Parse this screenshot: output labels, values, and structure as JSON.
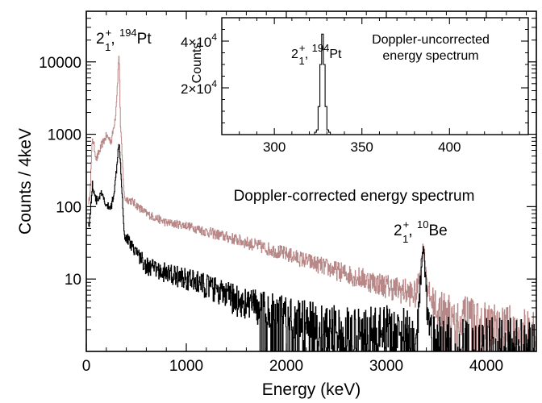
{
  "chart_data": [
    {
      "type": "line",
      "title": "Doppler-corrected energy spectrum",
      "xlabel": "Energy (keV)",
      "ylabel": "Counts / 4keV",
      "xlim": [
        0,
        4500
      ],
      "ylim": [
        1,
        50000
      ],
      "yscale": "log",
      "x_ticks": [
        0,
        1000,
        2000,
        3000,
        4000
      ],
      "x_tick_labels": [
        "0",
        "1000",
        "2000",
        "3000",
        "4000"
      ],
      "y_ticks": [
        10,
        100,
        1000,
        10000
      ],
      "y_tick_labels": [
        "10",
        "100",
        "1000",
        "10000"
      ],
      "grid": false,
      "series": [
        {
          "color": "#b88888",
          "x": [
            30,
            60,
            100,
            150,
            200,
            250,
            290,
            310,
            326,
            340,
            380,
            450,
            600,
            800,
            1000,
            1200,
            1500,
            2000,
            2500,
            3000,
            3300,
            3370,
            3420,
            3500,
            3800,
            4100,
            4500
          ],
          "y": [
            120,
            900,
            450,
            700,
            950,
            800,
            1800,
            5000,
            14000,
            1300,
            130,
            120,
            80,
            60,
            55,
            45,
            35,
            22,
            13,
            8,
            6,
            30,
            6,
            4,
            3,
            2,
            2
          ]
        },
        {
          "color": "#000000",
          "x": [
            30,
            60,
            100,
            150,
            200,
            250,
            290,
            310,
            326,
            340,
            380,
            450,
            600,
            800,
            1000,
            1200,
            1500,
            2000,
            2500,
            3000,
            3300,
            3370,
            3420,
            3500,
            3800
          ],
          "y": [
            60,
            200,
            120,
            150,
            100,
            100,
            220,
            500,
            850,
            400,
            40,
            30,
            15,
            12,
            10,
            8,
            5,
            3,
            2,
            2,
            1.5,
            34,
            1.5,
            1,
            1
          ]
        }
      ],
      "annotations": [
        {
          "label": "2",
          "sub": "1",
          "sup_left": "+",
          "sup_right": "194",
          "tail": ", ",
          "name": "Pt",
          "x": 326,
          "y": 14000
        },
        {
          "label": "2",
          "sub": "1",
          "sup_left": "+",
          "sup_right": "10",
          "tail": ", ",
          "name": "Be",
          "x": 3368,
          "y": 34
        }
      ]
    },
    {
      "type": "line",
      "title": "Doppler-uncorrected\nenergy spectrum",
      "title_lines": [
        "Doppler-uncorrected",
        "energy spectrum"
      ],
      "ylabel": "Counts",
      "xlim": [
        270,
        445
      ],
      "ylim": [
        0,
        50000
      ],
      "x_ticks": [
        300,
        350,
        400
      ],
      "x_tick_labels": [
        "300",
        "350",
        "400"
      ],
      "y_ticks": [
        20000,
        40000
      ],
      "y_tick_labels": [
        {
          "mantissa": "2×10",
          "exp": "4"
        },
        {
          "mantissa": "4×10",
          "exp": "4"
        }
      ],
      "series": [
        {
          "color": "#000000",
          "x": [
            270,
            322,
            324,
            325,
            326,
            327,
            328,
            329,
            330,
            332,
            445
          ],
          "y": [
            0,
            0,
            2000,
            12000,
            30000,
            43000,
            30000,
            12000,
            2000,
            0,
            0
          ]
        }
      ],
      "annotations": [
        {
          "label": "2",
          "sub": "1",
          "sup_left": "+",
          "sup_right": "194",
          "tail": ", ",
          "name": "Pt",
          "x": 326,
          "y": 43000
        }
      ]
    }
  ]
}
